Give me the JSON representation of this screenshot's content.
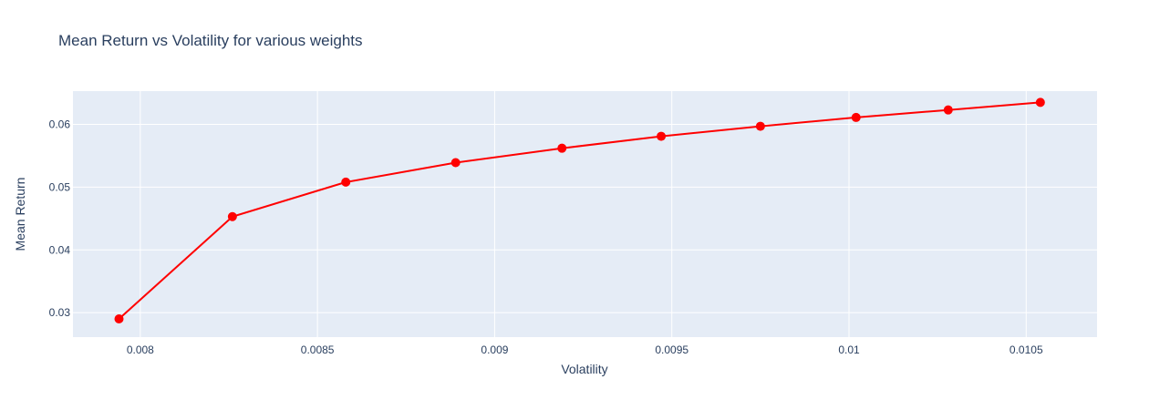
{
  "chart_data": {
    "type": "line",
    "title": "Mean Return vs Volatility for various weights",
    "xlabel": "Volatility",
    "ylabel": "Mean Return",
    "xlim": [
      0.00781,
      0.0107
    ],
    "ylim": [
      0.0261,
      0.0653
    ],
    "x_ticks": [
      0.008,
      0.0085,
      0.009,
      0.0095,
      0.01,
      0.0105
    ],
    "x_tick_labels": [
      "0.008",
      "0.0085",
      "0.009",
      "0.0095",
      "0.01",
      "0.0105"
    ],
    "y_ticks": [
      0.03,
      0.04,
      0.05,
      0.06
    ],
    "y_tick_labels": [
      "0.03",
      "0.04",
      "0.05",
      "0.06"
    ],
    "grid": true,
    "legend": "none",
    "series": [
      {
        "color": "#ff0000",
        "mode": "lines+markers",
        "x": [
          0.00794,
          0.00826,
          0.00858,
          0.00889,
          0.00919,
          0.00947,
          0.00975,
          0.01002,
          0.01028,
          0.01054
        ],
        "y": [
          0.029,
          0.0453,
          0.0508,
          0.0539,
          0.0562,
          0.0581,
          0.0597,
          0.0611,
          0.0623,
          0.0635
        ]
      }
    ],
    "colors": {
      "plot_bg": "#e5ecf6",
      "grid": "#ffffff",
      "text": "#2a3f5f"
    }
  }
}
